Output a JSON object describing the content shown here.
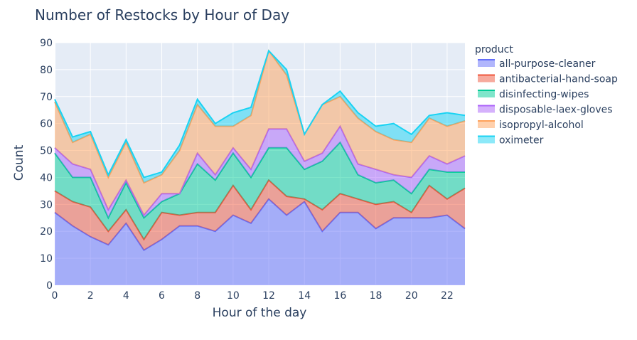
{
  "chart_data": {
    "type": "area",
    "title": "Number of Restocks by Hour of Day",
    "xlabel": "Hour of the day",
    "ylabel": "Count",
    "xlim": [
      0,
      23
    ],
    "ylim": [
      0,
      90
    ],
    "x_ticks": [
      0,
      2,
      4,
      6,
      8,
      10,
      12,
      14,
      16,
      18,
      20,
      22
    ],
    "y_ticks": [
      0,
      10,
      20,
      30,
      40,
      50,
      60,
      70,
      80,
      90
    ],
    "stacked": true,
    "grid": true,
    "plot_background": "#e5ecf6",
    "legend_title": "product",
    "legend_position": "right",
    "x": [
      0,
      1,
      2,
      3,
      4,
      5,
      6,
      7,
      8,
      9,
      10,
      11,
      12,
      13,
      14,
      15,
      16,
      17,
      18,
      19,
      20,
      21,
      22,
      23
    ],
    "series": [
      {
        "name": "all-purpose-cleaner",
        "color": "#636efa",
        "values": [
          27,
          22,
          18,
          15,
          23,
          13,
          17,
          22,
          22,
          20,
          26,
          23,
          32,
          26,
          31,
          20,
          27,
          27,
          21,
          25,
          25,
          25,
          26,
          21
        ]
      },
      {
        "name": "antibacterial-hand-soap",
        "color": "#ef553b",
        "values": [
          8,
          9,
          11,
          5,
          5,
          4,
          10,
          4,
          5,
          7,
          11,
          5,
          7,
          7,
          1,
          8,
          7,
          5,
          9,
          6,
          2,
          12,
          6,
          15
        ]
      },
      {
        "name": "disinfecting-wipes",
        "color": "#00cc96",
        "values": [
          14,
          9,
          11,
          5,
          10,
          8,
          4,
          8,
          18,
          12,
          12,
          12,
          12,
          18,
          11,
          18,
          19,
          9,
          8,
          8,
          7,
          6,
          10,
          6
        ]
      },
      {
        "name": "disposable-laex-gloves",
        "color": "#ab63fa",
        "values": [
          2,
          5,
          3,
          3,
          1,
          1,
          3,
          0,
          4,
          2,
          2,
          3,
          7,
          7,
          3,
          3,
          6,
          4,
          5,
          2,
          6,
          5,
          3,
          6
        ]
      },
      {
        "name": "isopropyl-alcohol",
        "color": "#ffa15a",
        "values": [
          17,
          8,
          13,
          12,
          14,
          12,
          7,
          16,
          18,
          18,
          8,
          20,
          29,
          20,
          10,
          18,
          11,
          17,
          14,
          13,
          13,
          14,
          14,
          13
        ]
      },
      {
        "name": "oximeter",
        "color": "#19d3f3",
        "values": [
          1,
          2,
          1,
          1,
          1,
          2,
          1,
          2,
          2,
          1,
          5,
          3,
          0,
          2,
          0,
          0,
          2,
          2,
          2,
          6,
          3,
          1,
          5,
          2
        ]
      }
    ]
  }
}
